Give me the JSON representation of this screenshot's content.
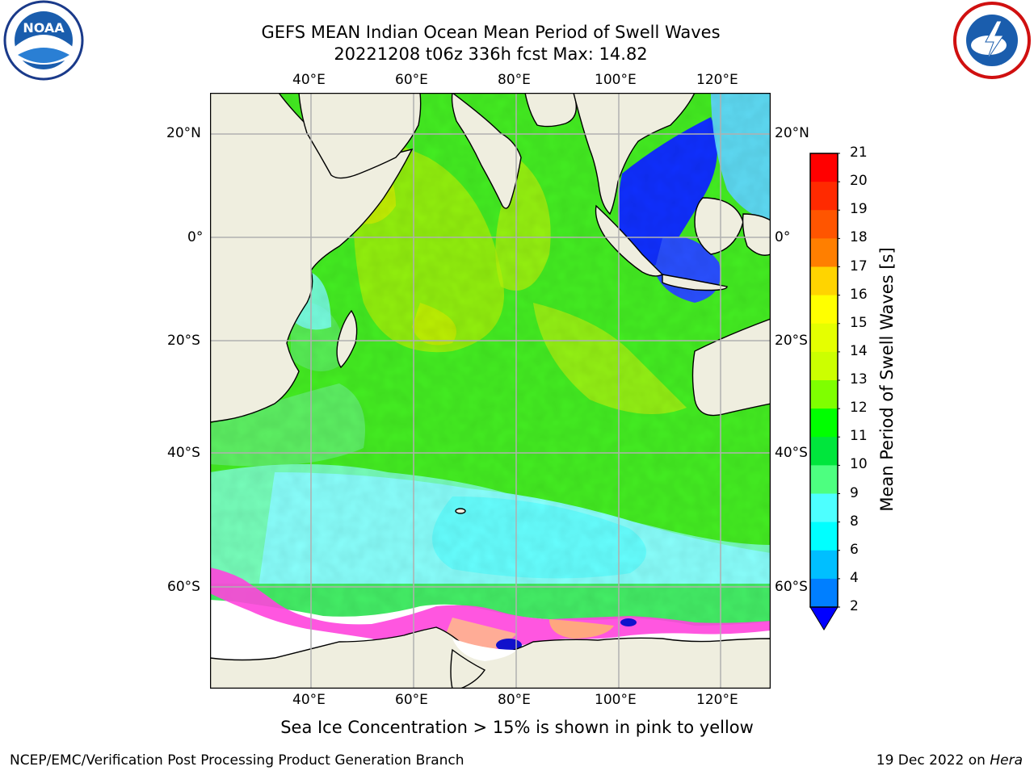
{
  "header": {
    "title_line1": "GEFS MEAN Indian Ocean Mean Period of Swell Waves",
    "title_line2": "20221208 t06z 336h fcst   Max: 14.82"
  },
  "logos": {
    "left": {
      "icon": "noaa-logo-icon",
      "text": "NOAA"
    },
    "right": {
      "icon": "nws-logo-icon"
    }
  },
  "map": {
    "lon_ticks": [
      "40°E",
      "60°E",
      "80°E",
      "100°E",
      "120°E"
    ],
    "lat_ticks": [
      "20°N",
      "0°",
      "20°S",
      "40°S",
      "60°S"
    ],
    "colors": {
      "land": "#efeedf",
      "grid": "#b0b0b0",
      "coast": "#000000",
      "ice": "#ff44dd"
    }
  },
  "colorbar": {
    "title": "Mean Period of Swell Waves [s]",
    "labels": [
      "21",
      "20",
      "19",
      "18",
      "17",
      "16",
      "15",
      "14",
      "13",
      "12",
      "11",
      "10",
      "9",
      "8",
      "6",
      "4",
      "2"
    ],
    "colors": [
      "#ff0000",
      "#ff2a00",
      "#ff5500",
      "#ff7f00",
      "#ffaa00",
      "#ffd400",
      "#ffff00",
      "#e5ff00",
      "#ccff00",
      "#7fff00",
      "#00ff00",
      "#00e63c",
      "#4dff80",
      "#99ffff",
      "#4dffff",
      "#00ffff",
      "#00bfff",
      "#007fff",
      "#0000ff"
    ]
  },
  "notes": {
    "ice_note": "Sea Ice Concentration > 15% is shown in pink to yellow",
    "branch": "NCEP/EMC/Verification Post Processing Product Generation Branch",
    "date_prefix": "19 Dec 2022 on ",
    "machine": "Hera"
  }
}
